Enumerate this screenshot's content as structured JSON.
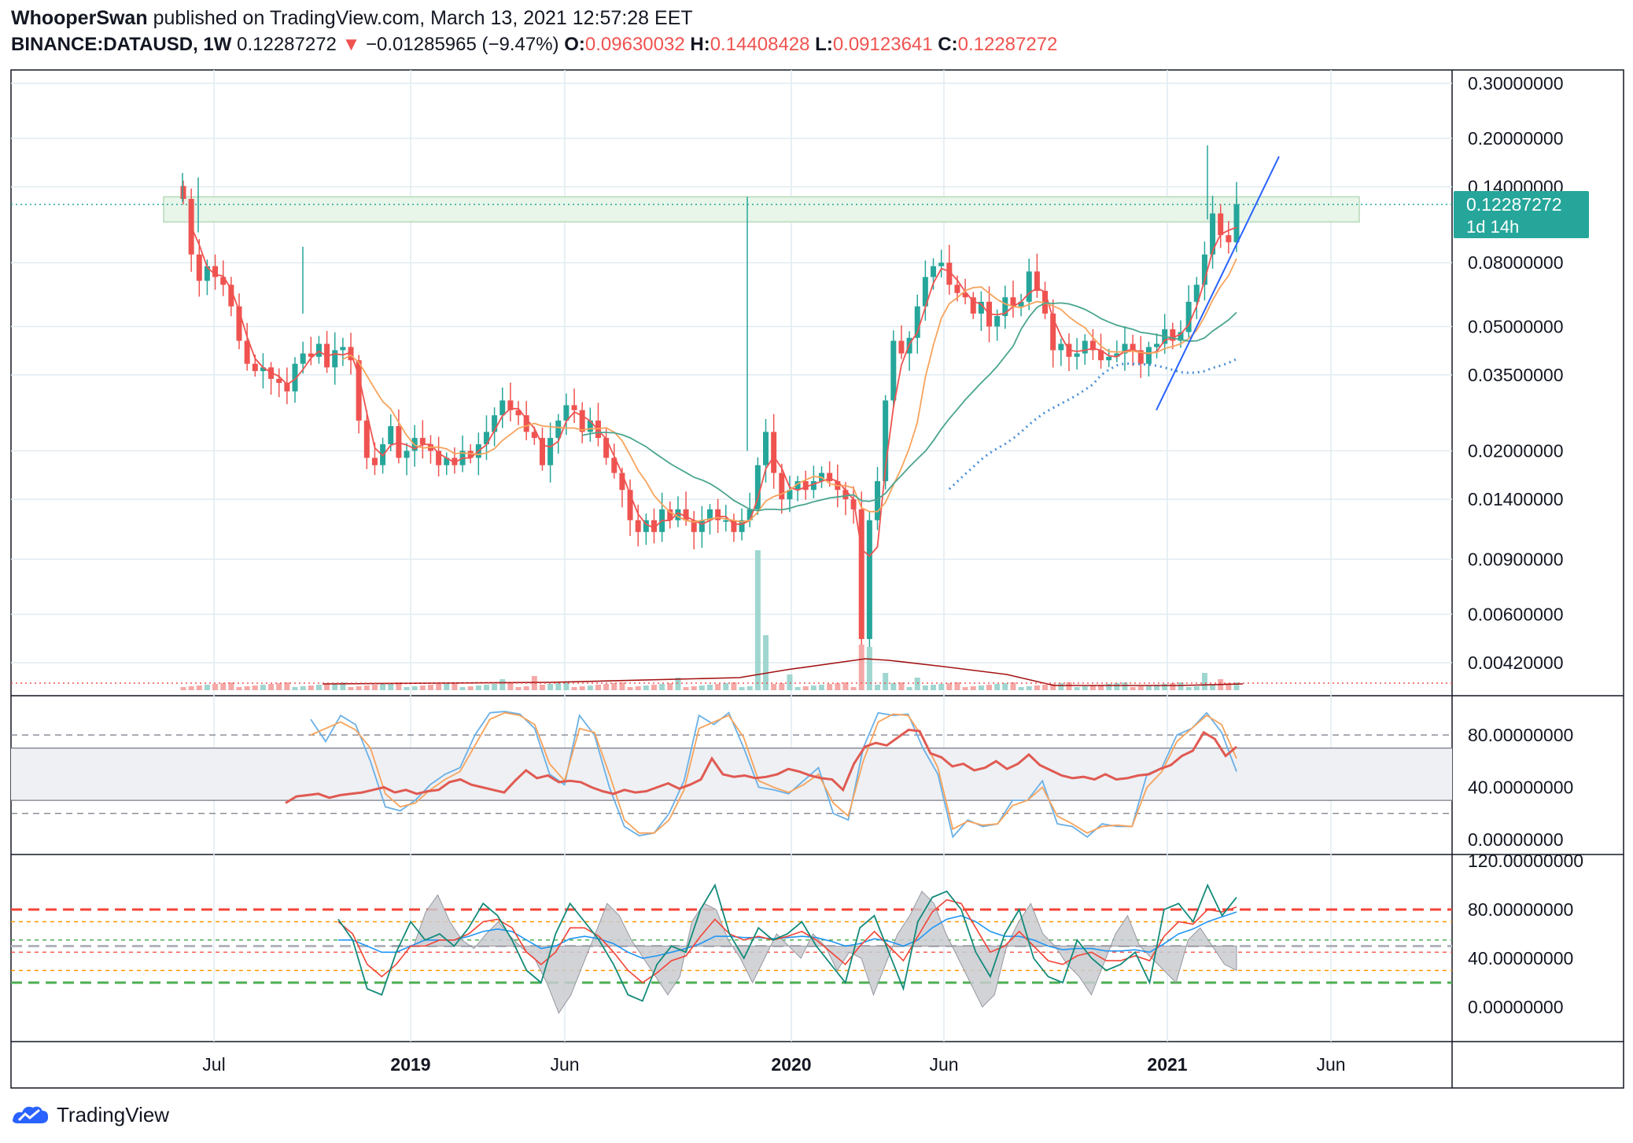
{
  "header": {
    "author": "WhooperSwan",
    "published_text": "published on TradingView.com, March 13, 2021 12:57:28 EET",
    "symbol": "BINANCE:DATAUSD, 1W",
    "last_price": "0.12287272",
    "change_arrow": "▼",
    "change": "−0.01285965 (−9.47%)",
    "o_label": "O:",
    "o_value": "0.09630032",
    "h_label": "H:",
    "h_value": "0.14408428",
    "l_label": "L:",
    "l_value": "0.09123641",
    "c_label": "C:",
    "c_value": "0.12287272"
  },
  "price_badge": {
    "price": "0.12287272",
    "countdown": "1d 14h"
  },
  "footer": {
    "brand": "TradingView"
  },
  "colors": {
    "up": "#26a69a",
    "down": "#ef5350",
    "grid": "#e1ecf2",
    "ma_orange": "#f7a35c",
    "ma_teal": "#4aa58f",
    "ma_blue_dots": "#4a8fd6",
    "trendline": "#2962ff",
    "badge": "#26a69a",
    "zone_fill": "#e8f5e9",
    "vol_ma": "#a31212",
    "rsi_line": "#e05a52",
    "stoch_k": "#6ab0e6",
    "stoch_d": "#f7a35c"
  },
  "chart_data": [
    {
      "type": "candlestick",
      "title": "BINANCE:DATAUSD, 1W",
      "y_scale": "log",
      "y_tick_labels": [
        "0.30000000",
        "0.20000000",
        "0.14000000",
        "0.08000000",
        "0.05000000",
        "0.03500000",
        "0.02000000",
        "0.01400000",
        "0.00900000",
        "0.00600000",
        "0.00420000"
      ],
      "y_ticks": [
        0.3,
        0.2,
        0.14,
        0.08,
        0.05,
        0.035,
        0.02,
        0.014,
        0.009,
        0.006,
        0.0042
      ],
      "x_tick_labels": [
        "Jul",
        "2019",
        "Jun",
        "2020",
        "Jun",
        "2021",
        "Jun"
      ],
      "last_price": 0.12287272,
      "resistance_zone": [
        0.108,
        0.13
      ],
      "closes_approx": [
        0.128,
        0.085,
        0.07,
        0.078,
        0.072,
        0.068,
        0.058,
        0.045,
        0.038,
        0.036,
        0.037,
        0.034,
        0.033,
        0.031,
        0.038,
        0.041,
        0.04,
        0.044,
        0.037,
        0.042,
        0.043,
        0.039,
        0.025,
        0.019,
        0.018,
        0.021,
        0.024,
        0.019,
        0.02,
        0.022,
        0.021,
        0.02,
        0.018,
        0.019,
        0.018,
        0.02,
        0.019,
        0.021,
        0.023,
        0.026,
        0.029,
        0.027,
        0.026,
        0.023,
        0.022,
        0.018,
        0.022,
        0.025,
        0.028,
        0.027,
        0.023,
        0.025,
        0.022,
        0.019,
        0.017,
        0.015,
        0.012,
        0.011,
        0.012,
        0.011,
        0.013,
        0.012,
        0.013,
        0.012,
        0.011,
        0.012,
        0.013,
        0.012,
        0.012,
        0.011,
        0.012,
        0.013,
        0.018,
        0.023,
        0.017,
        0.014,
        0.015,
        0.016,
        0.015,
        0.016,
        0.017,
        0.016,
        0.015,
        0.014,
        0.013,
        0.005,
        0.012,
        0.016,
        0.029,
        0.045,
        0.041,
        0.046,
        0.058,
        0.072,
        0.078,
        0.08,
        0.068,
        0.064,
        0.062,
        0.055,
        0.06,
        0.05,
        0.054,
        0.062,
        0.058,
        0.06,
        0.075,
        0.065,
        0.055,
        0.042,
        0.044,
        0.04,
        0.041,
        0.045,
        0.042,
        0.039,
        0.04,
        0.041,
        0.044,
        0.042,
        0.038,
        0.043,
        0.044,
        0.049,
        0.045,
        0.048,
        0.06,
        0.068,
        0.085,
        0.115,
        0.098,
        0.093,
        0.123
      ],
      "volume_ma_label": "",
      "indicators": [
        "MA (orange)",
        "MA (teal)",
        "MA (blue dotted)",
        "trend line"
      ]
    },
    {
      "type": "line",
      "panel": "RSI with Stochastic RSI",
      "y_tick_labels": [
        "80.00000000",
        "40.00000000",
        "0.00000000"
      ],
      "y_ticks": [
        80,
        40,
        0
      ],
      "band": [
        30,
        70
      ],
      "dashed_levels": [
        80,
        20
      ],
      "series": [
        {
          "values": [
            28,
            33,
            34,
            35,
            32,
            34,
            35,
            36,
            38,
            40,
            36,
            38,
            35,
            37,
            38,
            44,
            46,
            42,
            40,
            38,
            36,
            45,
            53,
            47,
            49,
            44,
            45,
            44,
            40,
            37,
            35,
            38,
            36,
            37,
            40,
            43,
            39,
            42,
            46,
            62,
            50,
            48,
            49,
            47,
            48,
            50,
            54,
            52,
            49,
            47,
            46,
            38,
            58,
            71,
            74,
            72,
            78,
            84,
            83,
            66,
            63,
            56,
            58,
            53,
            55,
            60,
            54,
            58,
            65,
            57,
            53,
            49,
            47,
            48,
            46,
            50,
            46,
            47,
            49,
            50,
            54,
            57,
            64,
            68,
            82,
            77,
            64,
            71
          ]
        },
        {
          "values": [
            92,
            75,
            95,
            88,
            60,
            25,
            22,
            30,
            42,
            50,
            55,
            80,
            97,
            98,
            96,
            85,
            50,
            42,
            95,
            80,
            40,
            10,
            3,
            5,
            20,
            45,
            95,
            88,
            97,
            70,
            40,
            38,
            35,
            45,
            55,
            20,
            15,
            70,
            97,
            95,
            96,
            70,
            50,
            2,
            15,
            10,
            12,
            30,
            30,
            45,
            12,
            10,
            2,
            12,
            10,
            10,
            50,
            55,
            80,
            85,
            97,
            82,
            52
          ]
        },
        {
          "values": [
            80,
            85,
            90,
            84,
            70,
            35,
            25,
            28,
            38,
            46,
            52,
            72,
            92,
            97,
            95,
            88,
            58,
            45,
            85,
            82,
            50,
            15,
            5,
            5,
            15,
            38,
            85,
            90,
            95,
            78,
            45,
            40,
            36,
            42,
            50,
            28,
            18,
            60,
            90,
            96,
            95,
            78,
            55,
            8,
            14,
            11,
            12,
            26,
            30,
            40,
            18,
            12,
            5,
            10,
            11,
            10,
            40,
            52,
            75,
            85,
            95,
            88,
            62
          ]
        }
      ]
    },
    {
      "type": "line",
      "panel": "Oscillator",
      "y_tick_labels": [
        "120.00000000",
        "80.00000000",
        "40.00000000",
        "0.00000000"
      ],
      "y_ticks": [
        120,
        80,
        40,
        0
      ],
      "levels": [
        80,
        70,
        55,
        45,
        30,
        20
      ]
    }
  ]
}
